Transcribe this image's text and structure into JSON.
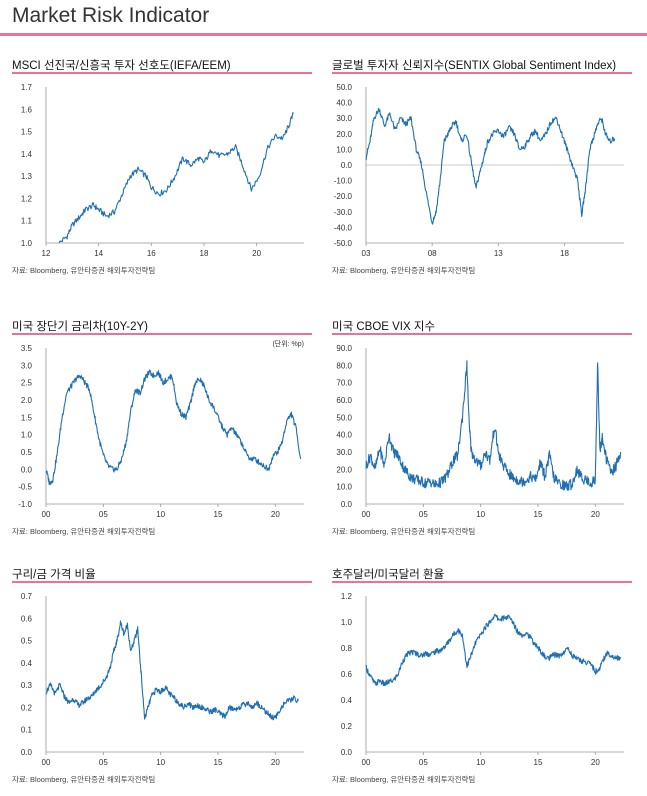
{
  "page": {
    "title": "Market Risk Indicator"
  },
  "chart_data": [
    {
      "id": "msci",
      "type": "line",
      "title": "MSCI 선진국/신흥국 투자 선호도(IEFA/EEM)",
      "source": "자료: Bloomberg, 유안타증권 해외투자전략팀",
      "unit": "",
      "color": "#1f6fb2",
      "xticks": [
        12,
        14,
        16,
        18,
        20
      ],
      "xlim": [
        12,
        21.8
      ],
      "ylim": [
        1.0,
        1.7
      ],
      "yticks": [
        "1.0",
        "1.1",
        "1.2",
        "1.3",
        "1.4",
        "1.5",
        "1.6",
        "1.7"
      ],
      "yticks_values": [
        1.0,
        1.1,
        1.2,
        1.3,
        1.4,
        1.5,
        1.6,
        1.7
      ],
      "series": [
        {
          "x": [
            12.5,
            12.8,
            13.0,
            13.3,
            13.5,
            13.8,
            14.0,
            14.3,
            14.6,
            14.9,
            15.2,
            15.5,
            15.8,
            16.0,
            16.3,
            16.6,
            16.9,
            17.2,
            17.5,
            17.8,
            18.0,
            18.3,
            18.6,
            18.9,
            19.2,
            19.5,
            19.8,
            20.1,
            20.4,
            20.7,
            21.0,
            21.2,
            21.4
          ],
          "y": [
            1.0,
            1.03,
            1.08,
            1.12,
            1.15,
            1.17,
            1.15,
            1.12,
            1.14,
            1.22,
            1.3,
            1.33,
            1.3,
            1.25,
            1.22,
            1.24,
            1.3,
            1.38,
            1.35,
            1.38,
            1.36,
            1.42,
            1.39,
            1.4,
            1.43,
            1.34,
            1.24,
            1.3,
            1.42,
            1.48,
            1.47,
            1.52,
            1.58
          ]
        }
      ]
    },
    {
      "id": "sentix",
      "type": "line",
      "title": "글로벌 투자자 신뢰지수(SENTIX Global Sentiment Index)",
      "source": "자료: Bloomberg, 유안타증권 해외투자전략팀",
      "unit": "",
      "color": "#1f6fb2",
      "xticks": [
        "03",
        "08",
        "13",
        "18"
      ],
      "xticks_values": [
        3,
        8,
        13,
        18
      ],
      "xlim": [
        3,
        22.5
      ],
      "ylim": [
        -50,
        50
      ],
      "yticks": [
        "50.0",
        "40.0",
        "30.0",
        "20.0",
        "10.0",
        "0.0",
        "-10.0",
        "-20.0",
        "-30.0",
        "-40.0",
        "-50.0"
      ],
      "yticks_values": [
        50,
        40,
        30,
        20,
        10,
        0,
        -10,
        -20,
        -30,
        -40,
        -50
      ],
      "zero_line": true,
      "series": [
        {
          "x": [
            3.0,
            3.3,
            3.6,
            4.0,
            4.4,
            4.8,
            5.2,
            5.6,
            6.0,
            6.4,
            6.8,
            7.2,
            7.6,
            8.0,
            8.3,
            8.6,
            8.9,
            9.2,
            9.5,
            9.8,
            10.2,
            10.6,
            11.0,
            11.3,
            11.6,
            11.9,
            12.2,
            12.6,
            13.0,
            13.4,
            13.8,
            14.2,
            14.6,
            15.0,
            15.4,
            15.8,
            16.2,
            16.6,
            17.0,
            17.4,
            17.8,
            18.2,
            18.6,
            19.0,
            19.3,
            19.6,
            19.9,
            20.2,
            20.5,
            20.8,
            21.1,
            21.4,
            21.8
          ],
          "y": [
            5,
            15,
            30,
            36,
            25,
            33,
            22,
            30,
            26,
            30,
            10,
            0,
            -20,
            -37,
            -30,
            -10,
            15,
            20,
            25,
            28,
            15,
            20,
            0,
            -15,
            -5,
            5,
            15,
            20,
            22,
            18,
            24,
            20,
            10,
            12,
            18,
            22,
            15,
            20,
            28,
            30,
            20,
            10,
            0,
            -10,
            -32,
            -15,
            10,
            18,
            26,
            30,
            20,
            15,
            17
          ]
        }
      ]
    },
    {
      "id": "spread",
      "type": "line",
      "title": "미국 장단기 금리차(10Y-2Y)",
      "source": "자료: Bloomberg, 유안타증권 해외투자전략팀",
      "unit": "(단위: %p)",
      "color": "#1f6fb2",
      "xticks": [
        "00",
        "05",
        "10",
        "15",
        "20"
      ],
      "xticks_values": [
        0,
        5,
        10,
        15,
        20
      ],
      "xlim": [
        0,
        22.5
      ],
      "ylim": [
        -1.0,
        3.5
      ],
      "yticks": [
        "3.5",
        "3.0",
        "2.5",
        "2.0",
        "1.5",
        "1.0",
        "0.5",
        "0.0",
        "-0.5",
        "-1.0"
      ],
      "yticks_values": [
        3.5,
        3.0,
        2.5,
        2.0,
        1.5,
        1.0,
        0.5,
        0.0,
        -0.5,
        -1.0
      ],
      "series": [
        {
          "x": [
            0.0,
            0.3,
            0.6,
            1.0,
            1.4,
            1.8,
            2.2,
            2.6,
            3.0,
            3.4,
            3.8,
            4.2,
            4.6,
            5.0,
            5.4,
            5.8,
            6.2,
            6.6,
            7.0,
            7.4,
            7.8,
            8.2,
            8.6,
            9.0,
            9.4,
            9.8,
            10.2,
            10.6,
            11.0,
            11.4,
            11.8,
            12.2,
            12.6,
            13.0,
            13.4,
            13.8,
            14.2,
            14.6,
            15.0,
            15.4,
            15.8,
            16.2,
            16.6,
            17.0,
            17.4,
            17.8,
            18.2,
            18.6,
            19.0,
            19.4,
            19.8,
            20.2,
            20.6,
            21.0,
            21.4,
            21.8,
            22.2
          ],
          "y": [
            0.0,
            -0.4,
            -0.3,
            0.5,
            1.5,
            2.2,
            2.4,
            2.6,
            2.7,
            2.5,
            2.3,
            1.6,
            0.9,
            0.4,
            0.1,
            0.0,
            0.0,
            0.3,
            0.8,
            1.7,
            2.3,
            2.2,
            2.6,
            2.8,
            2.7,
            2.8,
            2.5,
            2.6,
            2.7,
            1.9,
            1.6,
            1.5,
            1.9,
            2.5,
            2.6,
            2.4,
            2.0,
            1.8,
            1.5,
            1.2,
            1.0,
            1.2,
            1.0,
            0.8,
            0.5,
            0.3,
            0.3,
            0.2,
            0.1,
            0.0,
            0.4,
            0.5,
            0.8,
            1.4,
            1.6,
            1.2,
            0.3
          ]
        }
      ]
    },
    {
      "id": "vix",
      "type": "line",
      "title": "미국 CBOE VIX 지수",
      "source": "자료: Bloomberg, 유안타증권 해외투자전략팀",
      "unit": "",
      "color": "#1f6fb2",
      "xticks": [
        "00",
        "05",
        "10",
        "15",
        "20"
      ],
      "xticks_values": [
        0,
        5,
        10,
        15,
        20
      ],
      "xlim": [
        0,
        22.5
      ],
      "ylim": [
        0,
        90
      ],
      "yticks": [
        "90.0",
        "80.0",
        "70.0",
        "60.0",
        "50.0",
        "40.0",
        "30.0",
        "20.0",
        "10.0",
        "0.0"
      ],
      "yticks_values": [
        90,
        80,
        70,
        60,
        50,
        40,
        30,
        20,
        10,
        0
      ],
      "series": [
        {
          "x": [
            0.0,
            0.4,
            0.8,
            1.2,
            1.6,
            2.0,
            2.4,
            2.8,
            3.2,
            3.6,
            4.0,
            4.4,
            4.8,
            5.2,
            5.6,
            6.0,
            6.4,
            6.8,
            7.2,
            7.6,
            8.0,
            8.4,
            8.8,
            9.0,
            9.2,
            9.6,
            10.0,
            10.4,
            10.8,
            11.2,
            11.6,
            12.0,
            12.4,
            12.8,
            13.2,
            13.6,
            14.0,
            14.4,
            14.8,
            15.2,
            15.6,
            16.0,
            16.4,
            16.8,
            17.2,
            17.6,
            18.0,
            18.4,
            18.8,
            19.2,
            19.6,
            20.0,
            20.2,
            20.4,
            20.6,
            21.0,
            21.4,
            21.8,
            22.2
          ],
          "y": [
            22,
            28,
            20,
            32,
            22,
            40,
            30,
            28,
            22,
            18,
            15,
            14,
            13,
            12,
            13,
            11,
            12,
            14,
            18,
            25,
            28,
            50,
            80,
            45,
            30,
            25,
            22,
            30,
            25,
            45,
            28,
            22,
            18,
            15,
            14,
            13,
            14,
            16,
            14,
            24,
            16,
            28,
            15,
            12,
            11,
            10,
            12,
            20,
            15,
            14,
            12,
            14,
            82,
            30,
            38,
            25,
            18,
            22,
            30
          ]
        }
      ]
    },
    {
      "id": "copper-gold",
      "type": "line",
      "title": "구리/금 가격 비율",
      "source": "자료: Bloomberg, 유안타증권 해외투자전략팀",
      "unit": "",
      "color": "#1f6fb2",
      "xticks": [
        "00",
        "05",
        "10",
        "15",
        "20"
      ],
      "xticks_values": [
        0,
        5,
        10,
        15,
        20
      ],
      "xlim": [
        0,
        22.5
      ],
      "ylim": [
        0.0,
        0.7
      ],
      "yticks": [
        "0.7",
        "0.6",
        "0.5",
        "0.4",
        "0.3",
        "0.2",
        "0.1",
        "0.0"
      ],
      "yticks_values": [
        0.7,
        0.6,
        0.5,
        0.4,
        0.3,
        0.2,
        0.1,
        0.0
      ],
      "series": [
        {
          "x": [
            0.0,
            0.4,
            0.8,
            1.2,
            1.6,
            2.0,
            2.4,
            2.8,
            3.2,
            3.6,
            4.0,
            4.4,
            4.8,
            5.2,
            5.6,
            5.9,
            6.2,
            6.5,
            6.8,
            7.1,
            7.4,
            7.7,
            8.0,
            8.3,
            8.6,
            8.9,
            9.2,
            9.6,
            10.0,
            10.4,
            10.8,
            11.2,
            11.6,
            12.0,
            12.4,
            12.8,
            13.2,
            13.6,
            14.0,
            14.4,
            14.8,
            15.2,
            15.6,
            16.0,
            16.4,
            16.8,
            17.2,
            17.6,
            18.0,
            18.4,
            18.8,
            19.2,
            19.6,
            20.0,
            20.4,
            20.8,
            21.2,
            21.6,
            22.0
          ],
          "y": [
            0.27,
            0.3,
            0.26,
            0.3,
            0.25,
            0.22,
            0.24,
            0.21,
            0.22,
            0.24,
            0.25,
            0.28,
            0.3,
            0.33,
            0.38,
            0.45,
            0.5,
            0.58,
            0.53,
            0.57,
            0.45,
            0.5,
            0.55,
            0.35,
            0.15,
            0.2,
            0.25,
            0.28,
            0.27,
            0.29,
            0.26,
            0.24,
            0.22,
            0.2,
            0.22,
            0.2,
            0.21,
            0.2,
            0.19,
            0.18,
            0.19,
            0.17,
            0.16,
            0.2,
            0.19,
            0.2,
            0.21,
            0.22,
            0.2,
            0.22,
            0.2,
            0.18,
            0.16,
            0.15,
            0.19,
            0.22,
            0.23,
            0.24,
            0.23
          ]
        }
      ]
    },
    {
      "id": "audusd",
      "type": "line",
      "title": "호주달러/미국달러 환율",
      "source": "자료: Bloomberg, 유안타증권 해외투자전략팀",
      "unit": "",
      "color": "#1f6fb2",
      "xticks": [
        "00",
        "05",
        "10",
        "15",
        "20"
      ],
      "xticks_values": [
        0,
        5,
        10,
        15,
        20
      ],
      "xlim": [
        0,
        22.5
      ],
      "ylim": [
        0.0,
        1.2
      ],
      "yticks": [
        "1.2",
        "1.0",
        "0.8",
        "0.6",
        "0.4",
        "0.2",
        "0.0"
      ],
      "yticks_values": [
        1.2,
        1.0,
        0.8,
        0.6,
        0.4,
        0.2,
        0.0
      ],
      "series": [
        {
          "x": [
            0.0,
            0.4,
            0.8,
            1.2,
            1.6,
            2.0,
            2.4,
            2.8,
            3.2,
            3.6,
            4.0,
            4.4,
            4.8,
            5.2,
            5.6,
            6.0,
            6.4,
            6.8,
            7.2,
            7.6,
            8.0,
            8.4,
            8.8,
            9.2,
            9.6,
            10.0,
            10.4,
            10.8,
            11.2,
            11.6,
            12.0,
            12.4,
            12.8,
            13.2,
            13.6,
            14.0,
            14.4,
            14.8,
            15.2,
            15.6,
            16.0,
            16.4,
            16.8,
            17.2,
            17.6,
            18.0,
            18.4,
            18.8,
            19.2,
            19.6,
            20.0,
            20.3,
            20.6,
            21.0,
            21.4,
            21.8,
            22.2
          ],
          "y": [
            0.65,
            0.58,
            0.52,
            0.55,
            0.52,
            0.54,
            0.55,
            0.6,
            0.7,
            0.75,
            0.77,
            0.76,
            0.74,
            0.76,
            0.75,
            0.77,
            0.78,
            0.8,
            0.85,
            0.9,
            0.94,
            0.9,
            0.66,
            0.75,
            0.85,
            0.9,
            0.96,
            1.0,
            1.05,
            1.02,
            1.03,
            1.04,
            1.0,
            0.93,
            0.9,
            0.92,
            0.87,
            0.82,
            0.78,
            0.73,
            0.72,
            0.75,
            0.74,
            0.76,
            0.8,
            0.74,
            0.72,
            0.7,
            0.69,
            0.68,
            0.62,
            0.62,
            0.7,
            0.76,
            0.74,
            0.72,
            0.73
          ]
        }
      ]
    }
  ]
}
